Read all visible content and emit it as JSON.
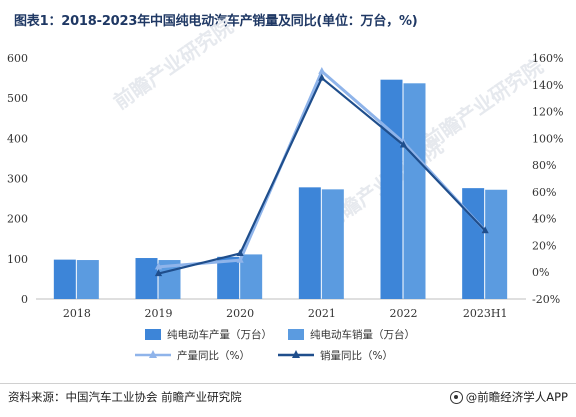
{
  "title": "图表1：2018-2023年中国纯电动汽车产销量及同比(单位：万台，%)",
  "source": "资料来源：中国汽车工业协会 前瞻产业研究院",
  "brand": "@前瞻经济学人APP",
  "watermark": "前瞻产业研究院",
  "colors": {
    "production_bar": "#3d85d8",
    "sales_bar": "#5b9be0",
    "production_yoy_line": "#8fb4ea",
    "sales_yoy_line": "#1f4e8c"
  },
  "chart_data": {
    "type": "bar",
    "categories": [
      "2018",
      "2019",
      "2020",
      "2021",
      "2022",
      "2023H1"
    ],
    "series": [
      {
        "name": "纯电动车产量（万台）",
        "type": "bar",
        "axis": "left",
        "values": [
          98,
          102,
          105,
          278,
          546,
          276
        ]
      },
      {
        "name": "纯电动车销量（万台）",
        "type": "bar",
        "axis": "left",
        "values": [
          97,
          97,
          111,
          273,
          537,
          272
        ]
      },
      {
        "name": "产量同比（%）",
        "type": "line",
        "axis": "right",
        "values": [
          null,
          4,
          9,
          150,
          97,
          31
        ]
      },
      {
        "name": "销量同比（%）",
        "type": "line",
        "axis": "right",
        "values": [
          null,
          -1,
          14,
          145,
          95,
          31
        ]
      }
    ],
    "y_left": {
      "min": 0,
      "max": 600,
      "ticks": [
        "0",
        "100",
        "200",
        "300",
        "400",
        "500",
        "600"
      ]
    },
    "y_right": {
      "min": -20,
      "max": 160,
      "ticks": [
        "-20%",
        "0%",
        "20%",
        "40%",
        "60%",
        "80%",
        "100%",
        "120%",
        "140%",
        "160%"
      ]
    },
    "grid": false,
    "legend_position": "bottom"
  }
}
